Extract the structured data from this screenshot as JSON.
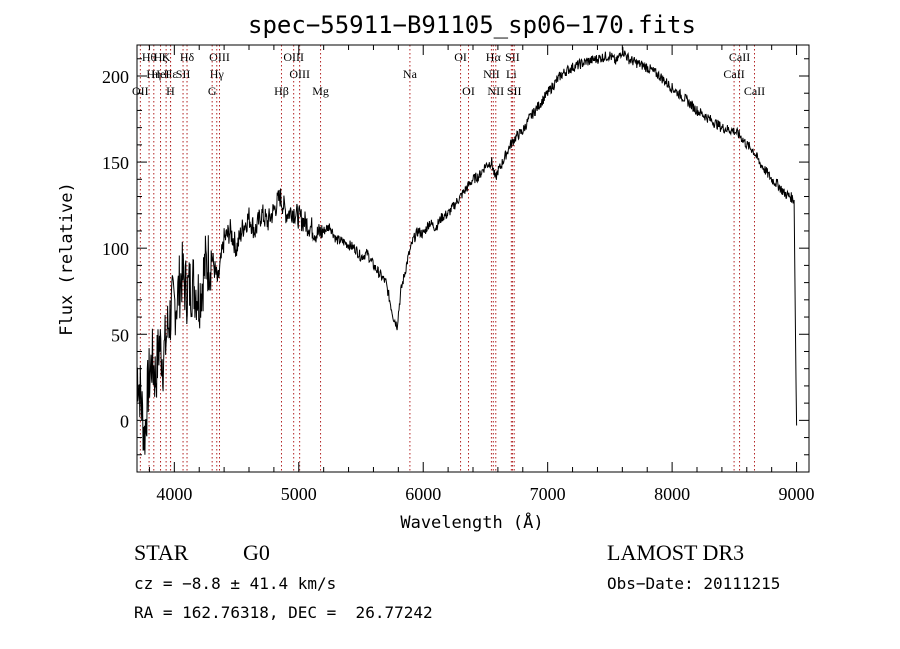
{
  "chart_data": {
    "type": "line",
    "title": "spec−55911−B91105_sp06−170.fits",
    "xlabel": "Wavelength (Å)",
    "ylabel": "Flux (relative)",
    "xlim": [
      3700,
      9100
    ],
    "ylim": [
      -30,
      218
    ],
    "xticks": [
      4000,
      5000,
      6000,
      7000,
      8000,
      9000
    ],
    "yticks": [
      0,
      50,
      100,
      150,
      200
    ],
    "series": [
      {
        "name": "spectrum",
        "x": [
          3700,
          3730,
          3760,
          3790,
          3820,
          3850,
          3880,
          3910,
          3950,
          3980,
          4020,
          4060,
          4100,
          4150,
          4200,
          4250,
          4300,
          4350,
          4400,
          4450,
          4500,
          4550,
          4600,
          4650,
          4700,
          4750,
          4800,
          4850,
          4900,
          4950,
          5000,
          5050,
          5100,
          5150,
          5200,
          5250,
          5300,
          5350,
          5400,
          5450,
          5500,
          5550,
          5600,
          5650,
          5700,
          5730,
          5760,
          5790,
          5820,
          5850,
          5880,
          5920,
          5960,
          6000,
          6050,
          6100,
          6150,
          6200,
          6250,
          6300,
          6350,
          6400,
          6450,
          6500,
          6550,
          6580,
          6600,
          6620,
          6650,
          6700,
          6750,
          6800,
          6850,
          6900,
          6950,
          7000,
          7050,
          7100,
          7150,
          7200,
          7300,
          7400,
          7500,
          7550,
          7600,
          7650,
          7700,
          7800,
          7900,
          8000,
          8100,
          8200,
          8300,
          8400,
          8500,
          8550,
          8600,
          8650,
          8700,
          8750,
          8800,
          8850,
          8900,
          8950,
          8980,
          8990,
          9000
        ],
        "y": [
          30,
          15,
          -10,
          20,
          35,
          25,
          45,
          35,
          55,
          65,
          70,
          85,
          75,
          80,
          72,
          90,
          95,
          80,
          105,
          110,
          100,
          112,
          118,
          110,
          120,
          115,
          122,
          130,
          120,
          122,
          118,
          115,
          112,
          108,
          110,
          113,
          105,
          104,
          102,
          100,
          95,
          97,
          90,
          85,
          80,
          70,
          60,
          55,
          75,
          85,
          95,
          105,
          110,
          108,
          115,
          112,
          118,
          120,
          125,
          130,
          135,
          140,
          142,
          148,
          150,
          140,
          145,
          147,
          152,
          160,
          165,
          168,
          175,
          180,
          185,
          190,
          195,
          200,
          203,
          205,
          208,
          210,
          212,
          208,
          215,
          210,
          208,
          205,
          200,
          193,
          187,
          180,
          175,
          170,
          168,
          165,
          160,
          157,
          150,
          145,
          140,
          137,
          132,
          130,
          128,
          60,
          -3
        ]
      }
    ],
    "line_markers": [
      {
        "label": "Hθ",
        "x": 3797,
        "row": 1
      },
      {
        "label": "Hη",
        "x": 3835,
        "row": 2
      },
      {
        "label": "Hε",
        "x": 3970,
        "row": 2
      },
      {
        "label": "HeI",
        "x": 3889,
        "row": 2
      },
      {
        "label": "Hζ",
        "x": 3889,
        "row": 1
      },
      {
        "label": "OII",
        "x": 3727,
        "row": 3
      },
      {
        "label": "K",
        "x": 3934,
        "row": 1
      },
      {
        "label": "SII",
        "x": 4070,
        "row": 2
      },
      {
        "label": "H",
        "x": 3969,
        "row": 3
      },
      {
        "label": "Hδ",
        "x": 4102,
        "row": 1
      },
      {
        "label": "OIII",
        "x": 4363,
        "row": 1
      },
      {
        "label": "Hγ",
        "x": 4341,
        "row": 2
      },
      {
        "label": "G",
        "x": 4304,
        "row": 3
      },
      {
        "label": "OIII",
        "x": 4959,
        "row": 1
      },
      {
        "label": "OIII",
        "x": 5007,
        "row": 2
      },
      {
        "label": "Hβ",
        "x": 4861,
        "row": 3
      },
      {
        "label": "Mg",
        "x": 5175,
        "row": 3
      },
      {
        "label": "Na",
        "x": 5893,
        "row": 2
      },
      {
        "label": "OI",
        "x": 6300,
        "row": 1
      },
      {
        "label": "OI",
        "x": 6364,
        "row": 3
      },
      {
        "label": "Hα",
        "x": 6563,
        "row": 1
      },
      {
        "label": "NII",
        "x": 6548,
        "row": 2
      },
      {
        "label": "NII",
        "x": 6583,
        "row": 3
      },
      {
        "label": "SII",
        "x": 6717,
        "row": 1
      },
      {
        "label": "Li",
        "x": 6708,
        "row": 2
      },
      {
        "label": "SII",
        "x": 6731,
        "row": 3
      },
      {
        "label": "CaII",
        "x": 8542,
        "row": 1
      },
      {
        "label": "CaII",
        "x": 8498,
        "row": 2
      },
      {
        "label": "CaII",
        "x": 8662,
        "row": 3
      }
    ]
  },
  "info": {
    "object_class": "STAR",
    "subclass": "G0",
    "survey": "LAMOST DR3",
    "redshift": "cz = −8.8 ± 41.4 km/s",
    "obs_date": "Obs−Date: 20111215",
    "coords": "RA = 162.76318, DEC =  26.77242"
  }
}
